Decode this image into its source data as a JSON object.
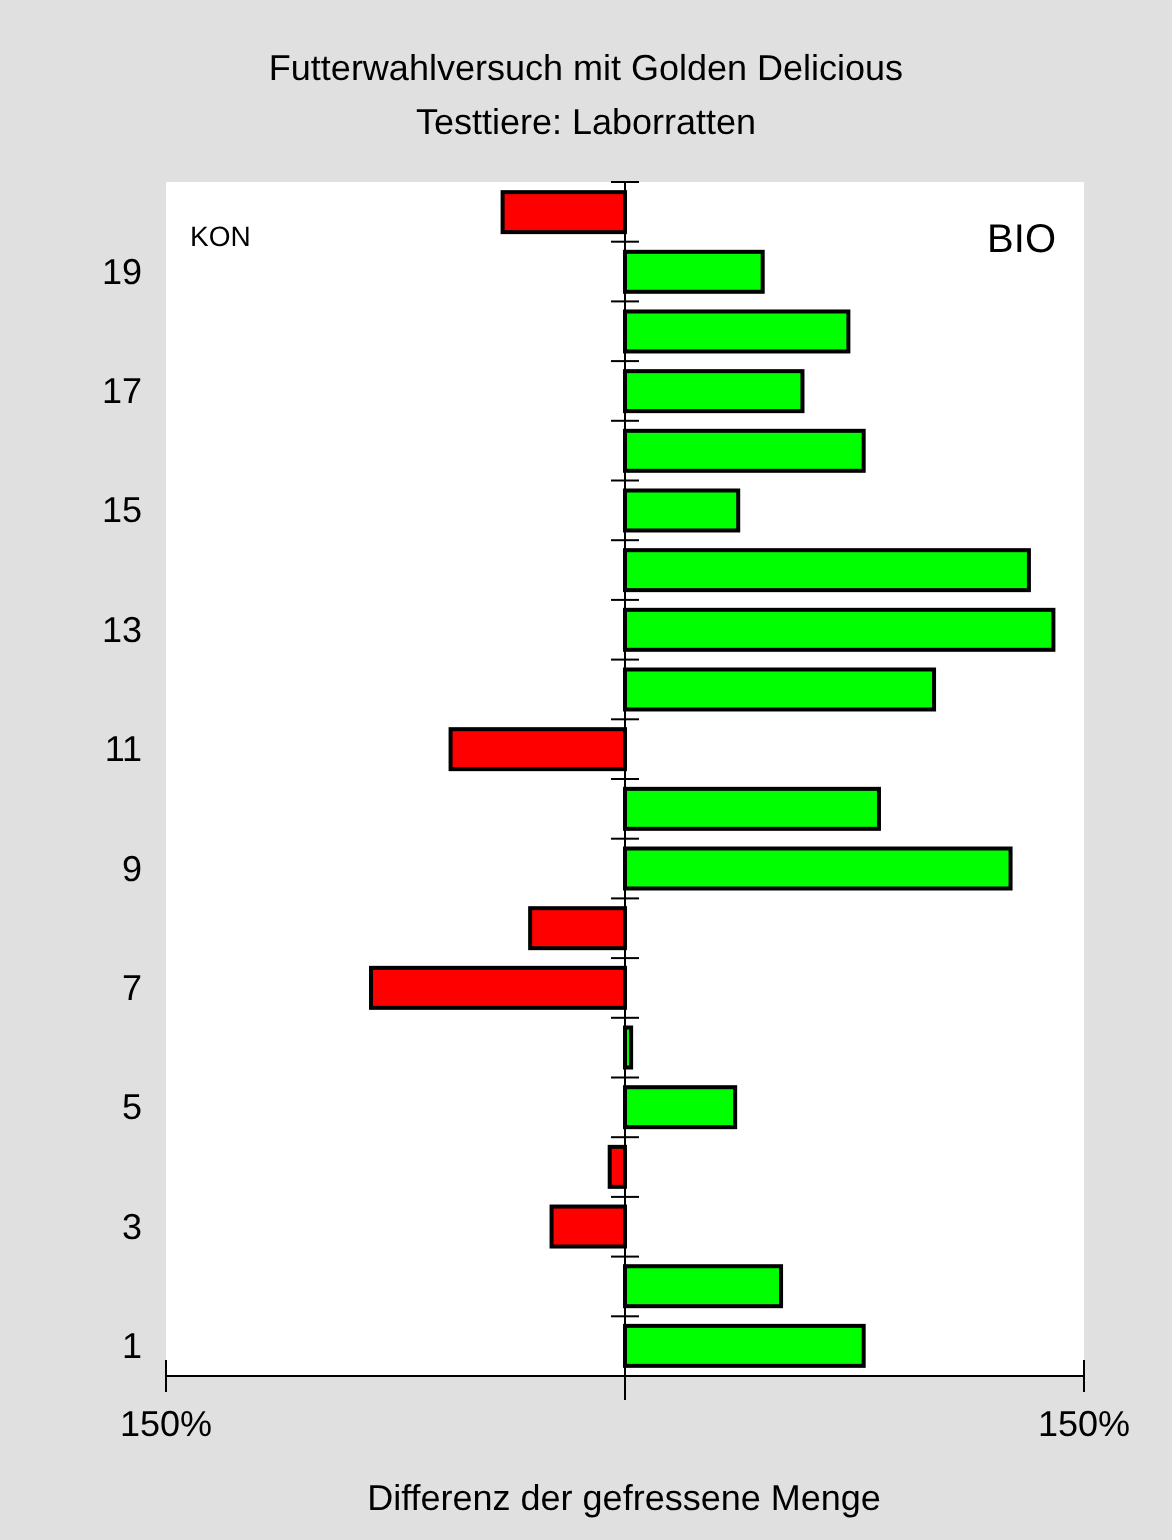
{
  "chart_data": {
    "type": "bar",
    "orientation": "horizontal",
    "title": "Futterwahlversuch mit Golden Delicious",
    "subtitle": "Testtiere: Laborratten",
    "xlabel": "Differenz der gefressene Menge",
    "categories": [
      null,
      "19",
      null,
      "17",
      null,
      "15",
      null,
      "13",
      null,
      "11",
      null,
      "9",
      null,
      "7",
      null,
      "5",
      null,
      "3",
      null,
      "1"
    ],
    "values": [
      -40,
      45,
      73,
      58,
      78,
      37,
      132,
      140,
      101,
      -57,
      83,
      126,
      -31,
      -83,
      2,
      36,
      -5,
      -24,
      51,
      78
    ],
    "colors": [
      "#ff0000",
      "#00ff00",
      "#00ff00",
      "#00ff00",
      "#00ff00",
      "#00ff00",
      "#00ff00",
      "#00ff00",
      "#00ff00",
      "#ff0000",
      "#00ff00",
      "#00ff00",
      "#ff0000",
      "#ff0000",
      "#00ff00",
      "#00ff00",
      "#ff0000",
      "#ff0000",
      "#00ff00",
      "#00ff00"
    ],
    "xlim": [
      -150,
      150
    ],
    "xticks": [
      {
        "value": -150,
        "label": "150%"
      },
      {
        "value": 150,
        "label": "150%"
      }
    ],
    "annotations": [
      "KON",
      "BIO"
    ]
  }
}
